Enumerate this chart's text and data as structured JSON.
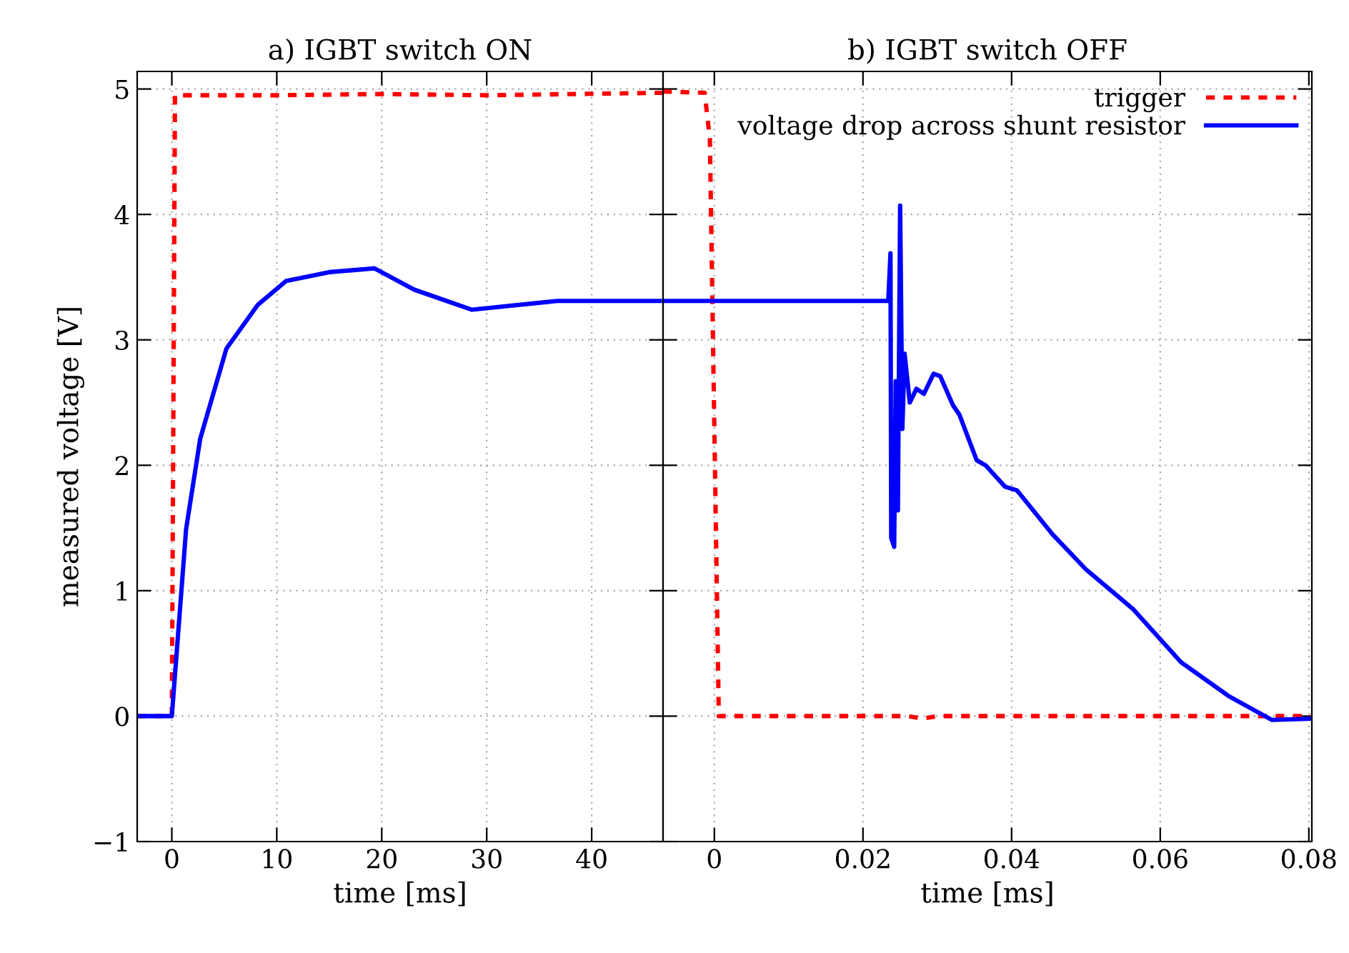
{
  "chart_data": [
    {
      "type": "line",
      "title": "a) IGBT switch ON",
      "xlabel": "time [ms]",
      "ylabel": "measured voltage [V]",
      "xlim": [
        -3.3,
        46.8
      ],
      "ylim": [
        -1,
        5.14
      ],
      "xticks": [
        0,
        10,
        20,
        30,
        40
      ],
      "yticks": [
        {
          "value": -1,
          "label": "−1"
        },
        0,
        1,
        2,
        3,
        4,
        5
      ],
      "grid": true,
      "legend": false,
      "series": [
        {
          "color": "#ff0000",
          "line_style": "dashed",
          "x": [
            -3.3,
            0,
            0.3,
            10,
            20,
            30,
            46.8
          ],
          "values": [
            0,
            0,
            4.95,
            4.95,
            4.96,
            4.95,
            4.97
          ]
        },
        {
          "color": "#0000ff",
          "line_style": "solid",
          "x": [
            -3.3,
            0,
            1.36,
            2.7,
            5.2,
            8.2,
            10.9,
            15,
            19.3,
            23.1,
            28.6,
            36.7,
            46.5
          ],
          "values": [
            0,
            0,
            1.49,
            2.21,
            2.93,
            3.28,
            3.47,
            3.54,
            3.57,
            3.4,
            3.24,
            3.31,
            3.31
          ]
        }
      ]
    },
    {
      "type": "line",
      "title": "b) IGBT switch OFF",
      "xlabel": "time [ms]",
      "xlim": [
        -0.0069,
        0.0804
      ],
      "ylim": [
        -1,
        5.14
      ],
      "xticks": [
        0,
        0.02,
        0.04,
        0.06,
        0.08
      ],
      "yticks": [
        -1,
        0,
        1,
        2,
        3,
        4,
        5
      ],
      "tick_labels": "x",
      "grid": true,
      "legend": "top right",
      "series": [
        {
          "name": "trigger",
          "color": "#ff0000",
          "line_style": "dashed",
          "x": [
            -0.0069,
            -0.0013,
            -0.0006,
            0.0006,
            0.01,
            0.02,
            0.026,
            0.028,
            0.03,
            0.05,
            0.07,
            0.0804
          ],
          "values": [
            4.98,
            4.97,
            4.6,
            0,
            0,
            0,
            0,
            -0.02,
            0,
            0,
            0,
            0
          ]
        },
        {
          "name": "voltage drop across shunt resistor",
          "color": "#0000ff",
          "line_style": "solid",
          "x": [
            -0.0069,
            0.01,
            0.0234,
            0.0237,
            0.0238,
            0.0242,
            0.0244,
            0.0247,
            0.025,
            0.0253,
            0.0256,
            0.0263,
            0.0272,
            0.0282,
            0.0295,
            0.0304,
            0.0321,
            0.033,
            0.0353,
            0.0365,
            0.0391,
            0.0407,
            0.041,
            0.0455,
            0.05,
            0.0564,
            0.0628,
            0.0692,
            0.075,
            0.0804
          ],
          "values": [
            3.31,
            3.31,
            3.31,
            3.69,
            1.42,
            1.35,
            2.67,
            1.64,
            4.07,
            2.29,
            2.89,
            2.5,
            2.61,
            2.57,
            2.73,
            2.71,
            2.48,
            2.4,
            2.04,
            2.0,
            1.83,
            1.8,
            1.78,
            1.45,
            1.17,
            0.85,
            0.43,
            0.16,
            -0.03,
            -0.02
          ]
        }
      ]
    }
  ]
}
